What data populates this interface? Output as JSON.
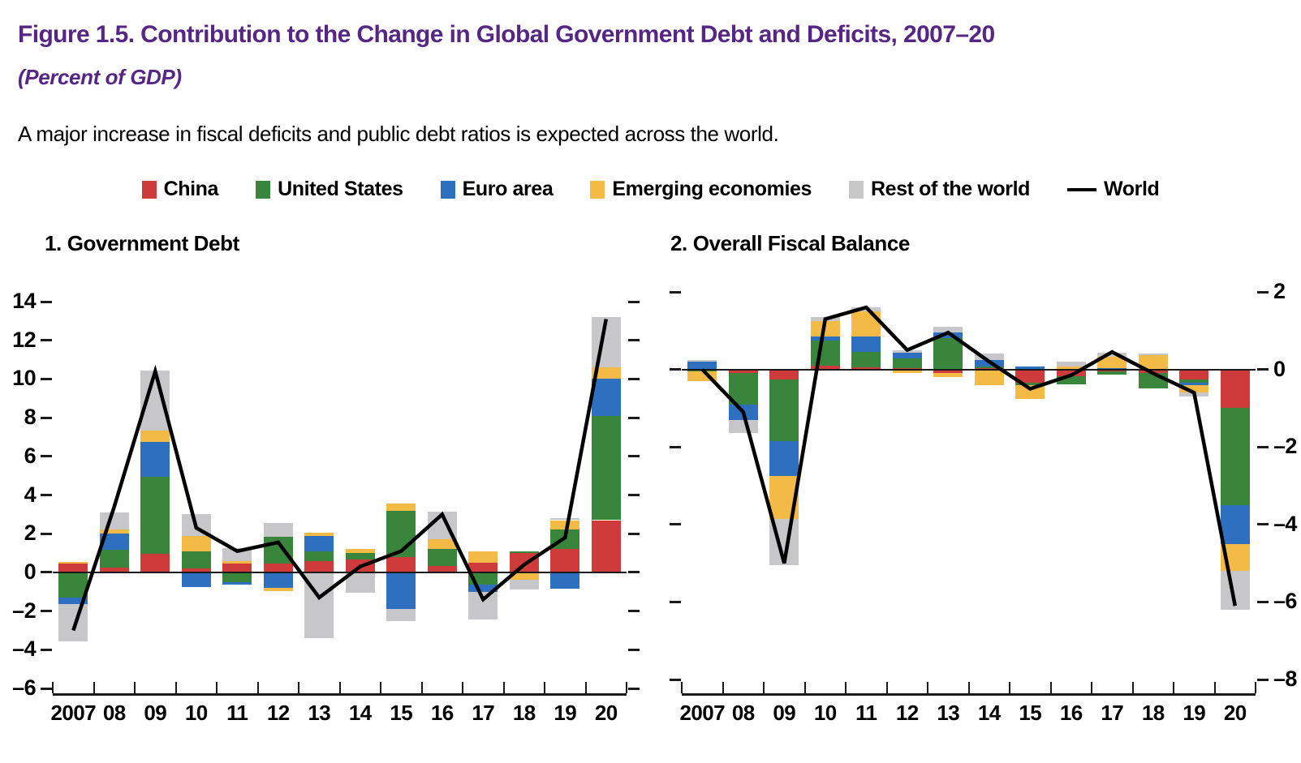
{
  "header": {
    "title": "Figure 1.5. Contribution to the Change in Global Government Debt and Deficits, 2007–20",
    "subtitle": "(Percent of GDP)",
    "note": "A major increase in fiscal deficits and public debt ratios is expected across the world."
  },
  "colors": {
    "china": "#cf3b3b",
    "united_states": "#3a853c",
    "euro_area": "#2e6fbf",
    "emerging_economies": "#f3bb45",
    "rest_of_the_world": "#c7c7c9",
    "world_line": "#000000",
    "title_accent": "#552683"
  },
  "legend": {
    "items": [
      {
        "label": "China",
        "color": "#cf3b3b"
      },
      {
        "label": "United States",
        "color": "#3a853c"
      },
      {
        "label": "Euro area",
        "color": "#2e6fbf"
      },
      {
        "label": "Emerging economies",
        "color": "#f3bb45"
      },
      {
        "label": "Rest of the world",
        "color": "#c7c7c9"
      }
    ],
    "line_item": {
      "label": "World",
      "color": "#000000"
    }
  },
  "chart_data": [
    {
      "type": "bar",
      "subtype": "stacked-bars-with-line",
      "title": "1. Government Debt",
      "categories": [
        "2007",
        "08",
        "09",
        "10",
        "11",
        "12",
        "13",
        "14",
        "15",
        "16",
        "17",
        "18",
        "19",
        "20"
      ],
      "ylim": [
        -6,
        14
      ],
      "yticks": [
        {
          "v": 14,
          "label": "14"
        },
        {
          "v": 12,
          "label": "12"
        },
        {
          "v": 10,
          "label": "10"
        },
        {
          "v": 8,
          "label": "8"
        },
        {
          "v": 6,
          "label": "6"
        },
        {
          "v": 4,
          "label": "4"
        },
        {
          "v": 2,
          "label": "2"
        },
        {
          "v": 0,
          "label": "0"
        },
        {
          "v": -2,
          "label": "–2"
        },
        {
          "v": -4,
          "label": "–4"
        },
        {
          "v": -6,
          "label": "–6"
        }
      ],
      "ytick_label_side": "left",
      "grid": false,
      "series": [
        {
          "name": "China",
          "color": "#cf3b3b",
          "values": [
            0.45,
            0.25,
            0.95,
            0.2,
            0.45,
            0.45,
            0.6,
            0.65,
            0.8,
            0.35,
            0.5,
            1.0,
            1.2,
            2.7
          ]
        },
        {
          "name": "United States",
          "color": "#3a853c",
          "values": [
            -1.3,
            0.9,
            4.0,
            0.9,
            -0.5,
            1.4,
            0.5,
            0.35,
            2.4,
            0.85,
            -0.65,
            0.1,
            1.0,
            5.4
          ]
        },
        {
          "name": "Euro area",
          "color": "#2e6fbf",
          "values": [
            -0.35,
            0.85,
            1.8,
            -0.75,
            -0.15,
            -0.8,
            0.8,
            0,
            -1.9,
            0,
            -0.35,
            0,
            -0.85,
            1.9
          ]
        },
        {
          "name": "Emerging economies",
          "color": "#f3bb45",
          "values": [
            0.1,
            0.2,
            0.6,
            0.8,
            0.15,
            -0.15,
            0.15,
            0.2,
            0.35,
            0.5,
            0.6,
            -0.4,
            0.5,
            0.6
          ]
        },
        {
          "name": "Rest of the world",
          "color": "#c7c7c9",
          "values": [
            -1.9,
            0.9,
            3.1,
            1.1,
            0.65,
            0.7,
            -3.4,
            -1.05,
            -0.6,
            1.45,
            -1.45,
            -0.5,
            0.1,
            2.6
          ]
        }
      ],
      "line": {
        "name": "World",
        "color": "#000000",
        "values": [
          -3.0,
          3.4,
          10.4,
          2.3,
          1.1,
          1.55,
          -1.3,
          0.3,
          1.1,
          3.0,
          -1.4,
          0.4,
          1.8,
          13.1
        ]
      }
    },
    {
      "type": "bar",
      "subtype": "stacked-bars-with-line",
      "title": "2. Overall Fiscal Balance",
      "categories": [
        "2007",
        "08",
        "09",
        "10",
        "11",
        "12",
        "13",
        "14",
        "15",
        "16",
        "17",
        "18",
        "19",
        "20"
      ],
      "ylim": [
        -8,
        2
      ],
      "yticks": [
        {
          "v": 2,
          "label": "2"
        },
        {
          "v": 0,
          "label": "0"
        },
        {
          "v": -2,
          "label": "–2"
        },
        {
          "v": -4,
          "label": "–4"
        },
        {
          "v": -6,
          "label": "–6"
        },
        {
          "v": -8,
          "label": "–8"
        }
      ],
      "ytick_label_side": "right",
      "grid": false,
      "series": [
        {
          "name": "China",
          "color": "#cf3b3b",
          "values": [
            0,
            -0.1,
            -0.25,
            0.1,
            0.05,
            0.03,
            -0.1,
            0.03,
            -0.35,
            -0.17,
            -0.06,
            -0.1,
            -0.25,
            -1.0
          ]
        },
        {
          "name": "United States",
          "color": "#3a853c",
          "values": [
            -0.05,
            -0.8,
            -1.6,
            0.65,
            0.4,
            0.26,
            0.8,
            0.05,
            -0.06,
            -0.21,
            -0.08,
            -0.4,
            -0.1,
            -2.5
          ]
        },
        {
          "name": "Euro area",
          "color": "#2e6fbf",
          "values": [
            0.2,
            -0.4,
            -0.9,
            0.1,
            0.4,
            0.15,
            0.15,
            0.17,
            0.07,
            0,
            0.03,
            0.02,
            -0.05,
            -1.0
          ]
        },
        {
          "name": "Emerging economies",
          "color": "#f3bb45",
          "values": [
            -0.25,
            0,
            -1.1,
            0.4,
            0.65,
            -0.1,
            -0.1,
            -0.4,
            -0.36,
            0.07,
            0.3,
            0.35,
            -0.2,
            -0.7
          ]
        },
        {
          "name": "Rest of the world",
          "color": "#c7c7c9",
          "values": [
            0.05,
            -0.35,
            -1.2,
            0.1,
            0.1,
            0.05,
            0.15,
            0.15,
            0,
            0.14,
            0.1,
            0.04,
            -0.1,
            -1.0
          ]
        }
      ],
      "line": {
        "name": "World",
        "color": "#000000",
        "values": [
          0.0,
          -1.1,
          -5.0,
          1.3,
          1.6,
          0.5,
          0.95,
          0.2,
          -0.5,
          -0.15,
          0.45,
          -0.1,
          -0.6,
          -6.1
        ]
      }
    }
  ]
}
